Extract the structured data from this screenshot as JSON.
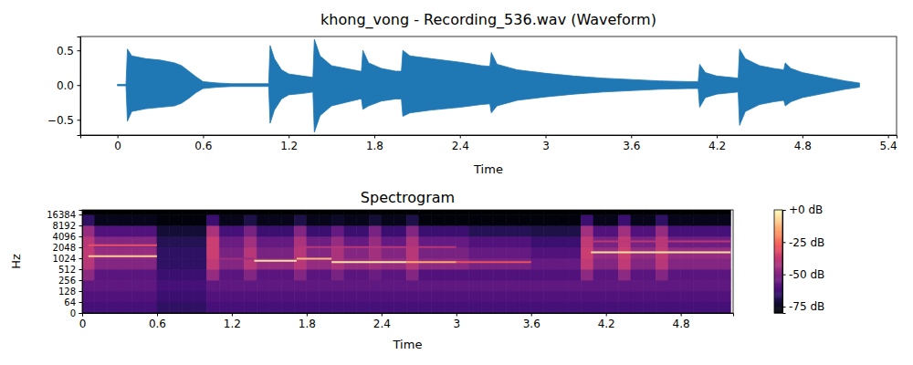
{
  "chart_data": [
    {
      "type": "area",
      "title": "khong_vong - Recording_536.wav (Waveform)",
      "x_label": "Time",
      "color": "#1f77b4",
      "x": [
        0,
        0.06,
        0.07,
        0.1,
        0.2,
        0.3,
        0.4,
        0.45,
        0.5,
        0.55,
        0.6,
        0.7,
        0.8,
        0.9,
        1.0,
        1.06,
        1.07,
        1.1,
        1.15,
        1.2,
        1.3,
        1.37,
        1.38,
        1.42,
        1.5,
        1.6,
        1.7,
        1.71,
        1.72,
        1.76,
        1.85,
        1.95,
        1.99,
        2.0,
        2.05,
        2.2,
        2.4,
        2.55,
        2.61,
        2.62,
        2.66,
        2.8,
        3.0,
        3.2,
        3.4,
        3.6,
        3.8,
        4.0,
        4.07,
        4.08,
        4.12,
        4.2,
        4.3,
        4.35,
        4.36,
        4.4,
        4.5,
        4.6,
        4.67,
        4.68,
        4.72,
        4.8,
        5.0,
        5.1,
        5.2
      ],
      "series": [
        {
          "values": [
            0.01,
            0.01,
            0.52,
            0.42,
            0.38,
            0.36,
            0.32,
            0.28,
            0.2,
            0.12,
            0.05,
            0.03,
            0.02,
            0.02,
            0.02,
            0.02,
            0.57,
            0.38,
            0.22,
            0.16,
            0.13,
            0.11,
            0.66,
            0.42,
            0.28,
            0.24,
            0.2,
            0.2,
            0.5,
            0.32,
            0.24,
            0.2,
            0.2,
            0.5,
            0.42,
            0.38,
            0.33,
            0.28,
            0.27,
            0.47,
            0.3,
            0.22,
            0.17,
            0.13,
            0.1,
            0.08,
            0.06,
            0.05,
            0.05,
            0.3,
            0.18,
            0.13,
            0.11,
            0.1,
            0.52,
            0.38,
            0.28,
            0.24,
            0.22,
            0.32,
            0.24,
            0.18,
            0.1,
            0.06,
            0.03
          ]
        },
        {
          "values": [
            -0.01,
            -0.01,
            -0.52,
            -0.38,
            -0.34,
            -0.32,
            -0.3,
            -0.26,
            -0.19,
            -0.11,
            -0.05,
            -0.03,
            -0.02,
            -0.02,
            -0.02,
            -0.02,
            -0.55,
            -0.36,
            -0.2,
            -0.14,
            -0.12,
            -0.1,
            -0.68,
            -0.44,
            -0.3,
            -0.25,
            -0.2,
            -0.2,
            -0.35,
            -0.3,
            -0.23,
            -0.2,
            -0.2,
            -0.45,
            -0.4,
            -0.36,
            -0.32,
            -0.28,
            -0.27,
            -0.4,
            -0.3,
            -0.22,
            -0.17,
            -0.13,
            -0.1,
            -0.08,
            -0.06,
            -0.05,
            -0.05,
            -0.32,
            -0.18,
            -0.13,
            -0.11,
            -0.1,
            -0.58,
            -0.38,
            -0.28,
            -0.24,
            -0.22,
            -0.3,
            -0.24,
            -0.18,
            -0.1,
            -0.06,
            -0.03
          ]
        }
      ],
      "xlim": [
        -0.26,
        5.46
      ],
      "xticks": [
        0,
        0.6,
        1.2,
        1.8,
        2.4,
        3,
        3.6,
        4.2,
        4.8,
        5.4
      ],
      "ylim": [
        -0.72,
        0.7
      ],
      "yticks": [
        {
          "value": -0.5,
          "label": "−0.5"
        },
        {
          "value": 0,
          "label": "0.0"
        },
        0.5
      ]
    },
    {
      "type": "heatmap",
      "title": "Spectrogram",
      "x_label": "Time",
      "y_label": "Hz",
      "color": "magma",
      "log": "y",
      "x_edges": [
        0,
        0.1,
        0.2,
        0.3,
        0.4,
        0.5,
        0.6,
        0.7,
        0.8,
        0.9,
        1,
        1.1,
        1.2,
        1.3,
        1.4,
        1.5,
        1.6,
        1.7,
        1.8,
        1.9,
        2,
        2.1,
        2.2,
        2.3,
        2.4,
        2.5,
        2.6,
        2.7,
        2.8,
        2.9,
        3,
        3.1,
        3.2,
        3.3,
        3.4,
        3.5,
        3.6,
        3.7,
        3.8,
        3.9,
        4,
        4.1,
        4.2,
        4.3,
        4.4,
        4.5,
        4.6,
        4.7,
        4.8,
        4.9,
        5,
        5.1,
        5.2
      ],
      "y_edges": [
        0,
        64,
        128,
        256,
        512,
        1024,
        2048,
        4096,
        8192,
        16384,
        22050
      ],
      "z": [
        [
          -62,
          -62,
          -62,
          -62,
          -62,
          -62,
          -66,
          -66,
          -66,
          -66,
          -62,
          -62,
          -62,
          -62,
          -62,
          -62,
          -62,
          -62,
          -62,
          -62,
          -62,
          -62,
          -62,
          -62,
          -62,
          -62,
          -62,
          -62,
          -62,
          -62,
          -62,
          -62,
          -62,
          -62,
          -62,
          -62,
          -62,
          -62,
          -62,
          -62,
          -62,
          -62,
          -62,
          -62,
          -62,
          -62,
          -62,
          -62,
          -62,
          -62,
          -62,
          -62
        ],
        [
          -60,
          -60,
          -60,
          -60,
          -60,
          -60,
          -64,
          -64,
          -64,
          -64,
          -60,
          -60,
          -60,
          -60,
          -60,
          -60,
          -60,
          -60,
          -60,
          -60,
          -60,
          -60,
          -60,
          -60,
          -60,
          -60,
          -60,
          -60,
          -60,
          -60,
          -60,
          -60,
          -60,
          -60,
          -60,
          -60,
          -60,
          -60,
          -60,
          -60,
          -60,
          -60,
          -60,
          -60,
          -60,
          -60,
          -60,
          -60,
          -60,
          -60,
          -60,
          -60
        ],
        [
          -57,
          -57,
          -57,
          -57,
          -57,
          -57,
          -62,
          -62,
          -62,
          -62,
          -57,
          -57,
          -57,
          -57,
          -57,
          -57,
          -57,
          -57,
          -57,
          -57,
          -57,
          -57,
          -57,
          -57,
          -57,
          -57,
          -57,
          -57,
          -57,
          -57,
          -57,
          -57,
          -57,
          -57,
          -57,
          -57,
          -57,
          -57,
          -57,
          -57,
          -57,
          -57,
          -57,
          -57,
          -57,
          -57,
          -57,
          -57,
          -57,
          -57,
          -57,
          -57
        ],
        [
          -48,
          -58,
          -58,
          -58,
          -58,
          -58,
          -64,
          -64,
          -64,
          -64,
          -46,
          -58,
          -58,
          -50,
          -58,
          -58,
          -58,
          -50,
          -58,
          -58,
          -52,
          -58,
          -58,
          -55,
          -58,
          -58,
          -50,
          -60,
          -60,
          -60,
          -60,
          -60,
          -60,
          -60,
          -60,
          -60,
          -60,
          -60,
          -60,
          -60,
          -48,
          -58,
          -58,
          -48,
          -58,
          -58,
          -50,
          -58,
          -58,
          -58,
          -58,
          -58
        ],
        [
          -40,
          -50,
          -50,
          -50,
          -50,
          -50,
          -66,
          -66,
          -66,
          -66,
          -38,
          -50,
          -50,
          -40,
          -46,
          -46,
          -46,
          -40,
          -46,
          -46,
          -42,
          -46,
          -46,
          -44,
          -46,
          -46,
          -40,
          -48,
          -48,
          -48,
          -48,
          -52,
          -52,
          -52,
          -52,
          -52,
          -56,
          -56,
          -56,
          -56,
          -38,
          -50,
          -50,
          -38,
          -50,
          -50,
          -40,
          -50,
          -50,
          -50,
          -50,
          -50
        ],
        [
          -38,
          -46,
          -46,
          -46,
          -46,
          -46,
          -66,
          -66,
          -66,
          -66,
          -36,
          -52,
          -52,
          -40,
          -52,
          -52,
          -52,
          -40,
          -50,
          -50,
          -42,
          -50,
          -50,
          -44,
          -50,
          -50,
          -40,
          -52,
          -52,
          -52,
          -52,
          -56,
          -56,
          -56,
          -56,
          -56,
          -60,
          -60,
          -60,
          -60,
          -36,
          -46,
          -46,
          -36,
          -46,
          -46,
          -38,
          -46,
          -46,
          -46,
          -46,
          -46
        ],
        [
          -40,
          -50,
          -50,
          -50,
          -50,
          -50,
          -68,
          -68,
          -68,
          -68,
          -36,
          -55,
          -55,
          -44,
          -56,
          -56,
          -56,
          -42,
          -54,
          -54,
          -46,
          -56,
          -56,
          -46,
          -56,
          -56,
          -42,
          -56,
          -56,
          -56,
          -56,
          -60,
          -60,
          -60,
          -60,
          -60,
          -64,
          -64,
          -64,
          -64,
          -38,
          -52,
          -52,
          -38,
          -52,
          -52,
          -40,
          -54,
          -54,
          -54,
          -54,
          -54
        ],
        [
          -46,
          -60,
          -60,
          -60,
          -60,
          -60,
          -72,
          -72,
          -72,
          -72,
          -42,
          -62,
          -62,
          -52,
          -64,
          -64,
          -64,
          -50,
          -64,
          -64,
          -56,
          -64,
          -64,
          -52,
          -64,
          -64,
          -50,
          -64,
          -64,
          -64,
          -64,
          -68,
          -68,
          -68,
          -68,
          -68,
          -70,
          -70,
          -70,
          -70,
          -44,
          -60,
          -60,
          -44,
          -60,
          -60,
          -46,
          -62,
          -62,
          -62,
          -62,
          -62
        ],
        [
          -66,
          -76,
          -76,
          -76,
          -76,
          -76,
          -78,
          -78,
          -78,
          -78,
          -64,
          -76,
          -76,
          -70,
          -76,
          -76,
          -76,
          -70,
          -76,
          -76,
          -74,
          -76,
          -76,
          -72,
          -76,
          -76,
          -70,
          -78,
          -78,
          -78,
          -78,
          -78,
          -78,
          -78,
          -78,
          -78,
          -78,
          -78,
          -78,
          -78,
          -64,
          -76,
          -76,
          -64,
          -76,
          -76,
          -66,
          -76,
          -76,
          -76,
          -76,
          -76
        ],
        [
          -80,
          -80,
          -80,
          -80,
          -80,
          -80,
          -80,
          -80,
          -80,
          -80,
          -80,
          -80,
          -80,
          -80,
          -80,
          -80,
          -80,
          -80,
          -80,
          -80,
          -80,
          -80,
          -80,
          -80,
          -80,
          -80,
          -80,
          -80,
          -80,
          -80,
          -80,
          -80,
          -80,
          -80,
          -80,
          -80,
          -80,
          -80,
          -80,
          -80,
          -80,
          -80,
          -80,
          -80,
          -80,
          -80,
          -80,
          -80,
          -80,
          -80,
          -80,
          -80
        ]
      ],
      "tones": [
        {
          "t": [
            0.05,
            0.6
          ],
          "f": 1175,
          "db": -8
        },
        {
          "t": [
            0.05,
            0.6
          ],
          "f": 2350,
          "db": -30
        },
        {
          "t": [
            1.1,
            1.38
          ],
          "f": 1000,
          "db": -45
        },
        {
          "t": [
            1.38,
            1.72
          ],
          "f": 880,
          "db": -5
        },
        {
          "t": [
            1.72,
            2.0
          ],
          "f": 1000,
          "db": -12
        },
        {
          "t": [
            2.0,
            2.6
          ],
          "f": 800,
          "db": -5
        },
        {
          "t": [
            2.6,
            3.0
          ],
          "f": 800,
          "db": -15
        },
        {
          "t": [
            3.0,
            3.6
          ],
          "f": 800,
          "db": -30
        },
        {
          "t": [
            1.72,
            3.0
          ],
          "f": 2100,
          "db": -40
        },
        {
          "t": [
            4.08,
            5.2
          ],
          "f": 1500,
          "db": -5
        },
        {
          "t": [
            4.08,
            5.2
          ],
          "f": 3000,
          "db": -40
        }
      ],
      "xlim": [
        0,
        5.22
      ],
      "xticks": [
        0,
        0.6,
        1.2,
        1.8,
        2.4,
        3,
        3.6,
        4.2,
        4.8
      ],
      "ylim": [
        0,
        22050
      ],
      "yticks": [
        0,
        64,
        128,
        256,
        512,
        1024,
        2048,
        4096,
        8192,
        16384
      ],
      "colorbar": {
        "range": [
          -80,
          0
        ],
        "ticks": [
          {
            "value": 0,
            "label": "+0 dB"
          },
          {
            "value": -25,
            "label": "-25 dB"
          },
          {
            "value": -50,
            "label": "-50 dB"
          },
          {
            "value": -75,
            "label": "-75 dB"
          }
        ]
      }
    }
  ]
}
